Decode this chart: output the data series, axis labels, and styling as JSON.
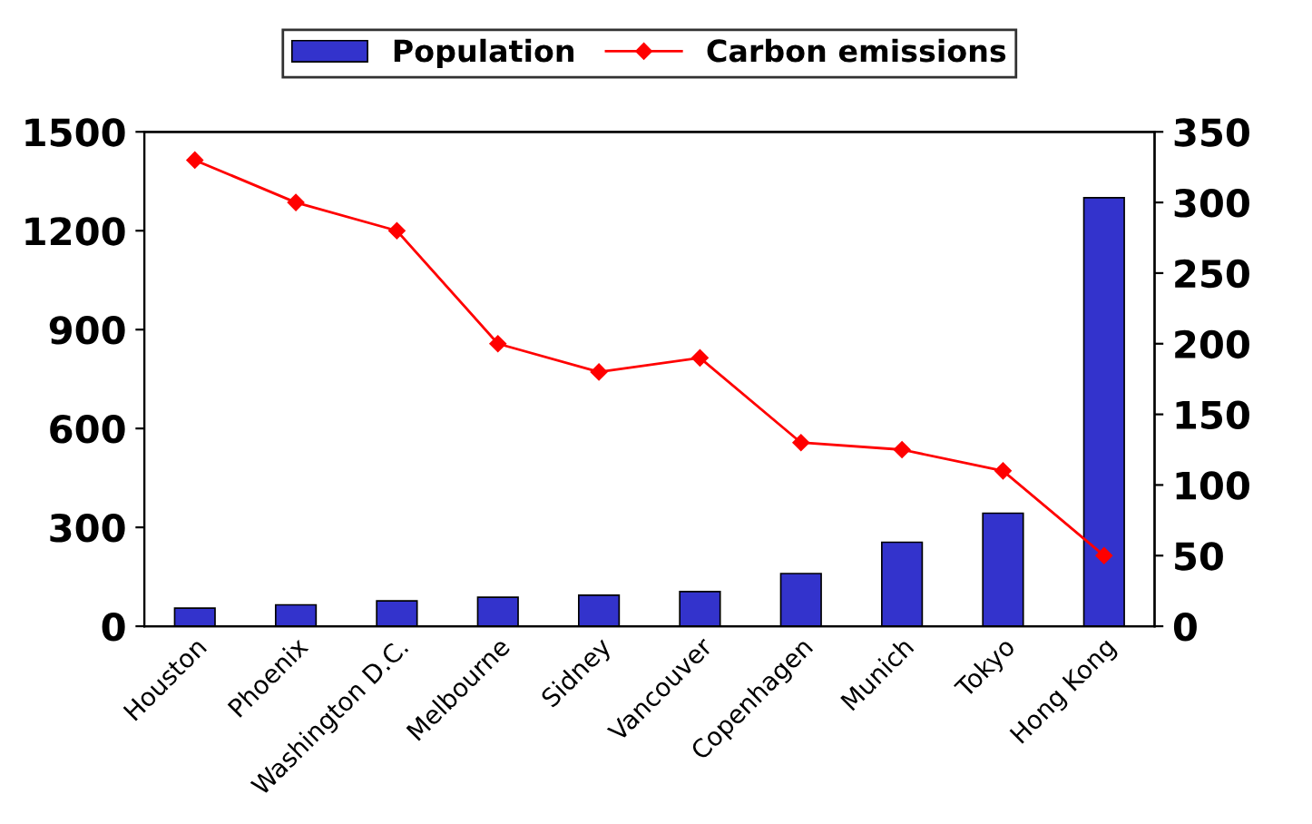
{
  "chart_data": {
    "type": "bar",
    "categories": [
      "Houston",
      "Phoenix",
      "Washington D.C.",
      "Melbourne",
      "Sidney",
      "Vancouver",
      "Copenhagen",
      "Munich",
      "Tokyo",
      "Hong Kong"
    ],
    "series": [
      {
        "name": "Population",
        "color": "#3333cc",
        "values": [
          55,
          65,
          77,
          88,
          94,
          105,
          160,
          255,
          343,
          1300
        ]
      },
      {
        "name": "Carbon emissions",
        "type": "line",
        "axis": "y2",
        "color": "#ff0000",
        "marker": "diamond",
        "values": [
          330,
          300,
          280,
          200,
          180,
          190,
          130,
          125,
          110,
          50
        ]
      }
    ],
    "ylim": [
      0,
      1500
    ],
    "yticks": [
      0,
      300,
      600,
      900,
      1200,
      1500
    ],
    "y2lim": [
      0,
      350
    ],
    "y2ticks": [
      0,
      50,
      100,
      150,
      200,
      250,
      300,
      350
    ],
    "grid": false,
    "legend": "top"
  }
}
